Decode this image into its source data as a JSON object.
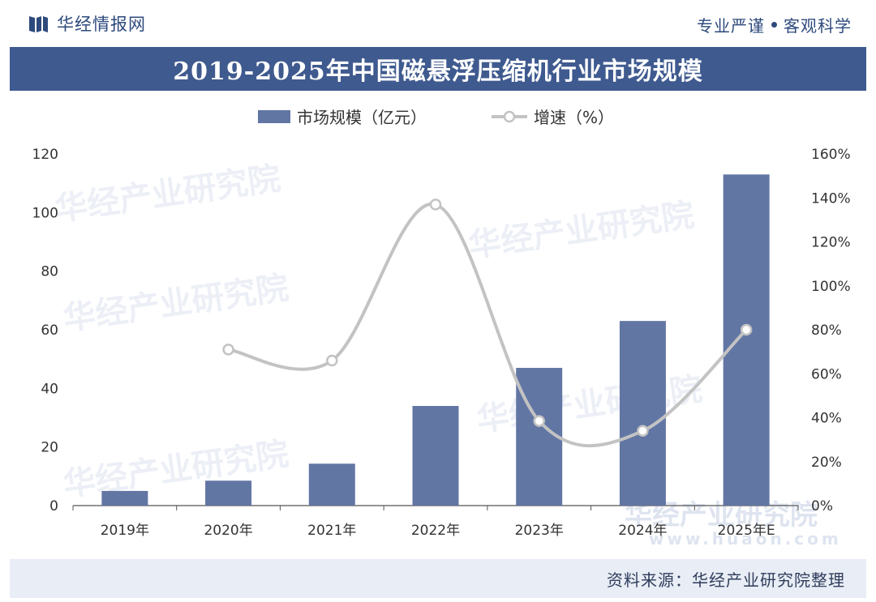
{
  "header": {
    "brand": "华经情报网",
    "slogan_left": "专业严谨",
    "slogan_right": "客观科学"
  },
  "footer": {
    "source": "资料来源：华经产业研究院整理"
  },
  "colors": {
    "bar": "#6276a4",
    "line": "#c3c3c3",
    "title_bg": "#3f5a8f"
  },
  "chart_data": {
    "type": "bar",
    "title": "2019-2025年中国磁悬浮压缩机行业市场规模",
    "categories": [
      "2019年",
      "2020年",
      "2021年",
      "2022年",
      "2023年",
      "2024年",
      "2025年E"
    ],
    "series": [
      {
        "name": "市场规模（亿元）",
        "type": "bar",
        "axis": "left",
        "values": [
          5,
          8.5,
          14.3,
          34,
          47,
          63,
          113
        ]
      },
      {
        "name": "增速（%）",
        "type": "line",
        "axis": "right",
        "values": [
          null,
          71,
          66,
          137,
          38.5,
          34,
          80
        ]
      }
    ],
    "ylim_left": [
      0,
      120
    ],
    "yticks_left": [
      "0",
      "20",
      "40",
      "60",
      "80",
      "100",
      "120"
    ],
    "ylim_right": [
      0,
      160
    ],
    "yticks_right": [
      "0%",
      "20%",
      "40%",
      "60%",
      "80%",
      "100%",
      "120%",
      "140%",
      "160%"
    ],
    "legend": "top-center",
    "watermark": "华经产业研究院",
    "watermark_url": "www.huaon.com"
  }
}
